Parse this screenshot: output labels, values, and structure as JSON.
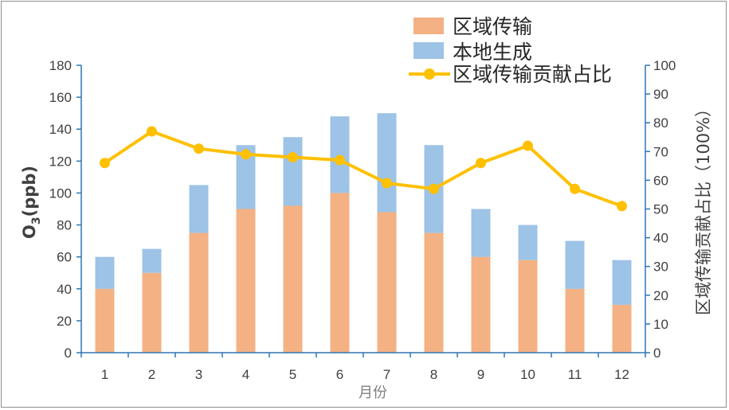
{
  "chart_data": {
    "type": "bar",
    "stacked": true,
    "categories": [
      "1",
      "2",
      "3",
      "4",
      "5",
      "6",
      "7",
      "8",
      "9",
      "10",
      "11",
      "12"
    ],
    "series": [
      {
        "name": "区域传输",
        "axis": "left",
        "kind": "bar",
        "color": "#f4b183",
        "values": [
          40,
          50,
          75,
          90,
          92,
          100,
          88,
          75,
          60,
          58,
          40,
          30
        ]
      },
      {
        "name": "本地生成",
        "axis": "left",
        "kind": "bar",
        "color": "#9dc3e6",
        "values": [
          20,
          15,
          30,
          40,
          43,
          48,
          62,
          55,
          30,
          22,
          30,
          28
        ]
      },
      {
        "name": "区域传输贡献占比",
        "axis": "right",
        "kind": "line",
        "color": "#ffc000",
        "values": [
          66,
          77,
          71,
          69,
          68,
          67,
          59,
          57,
          66,
          72,
          57,
          51
        ]
      }
    ],
    "xlabel": "月份",
    "ylabel": {
      "main": "O",
      "sub": "3",
      "rest": "(ppb)"
    },
    "y2label": "区域传输贡献占比（100%）",
    "ylim": [
      0,
      180
    ],
    "y2lim": [
      0,
      100
    ],
    "yticks": [
      "0",
      "20",
      "40",
      "60",
      "80",
      "100",
      "120",
      "140",
      "160",
      "180"
    ],
    "y2ticks": [
      "0",
      "10",
      "20",
      "30",
      "40",
      "50",
      "60",
      "70",
      "80",
      "90",
      "100"
    ],
    "grid": false,
    "legend_position": "top-right",
    "axis_color": "#2e75b6"
  }
}
